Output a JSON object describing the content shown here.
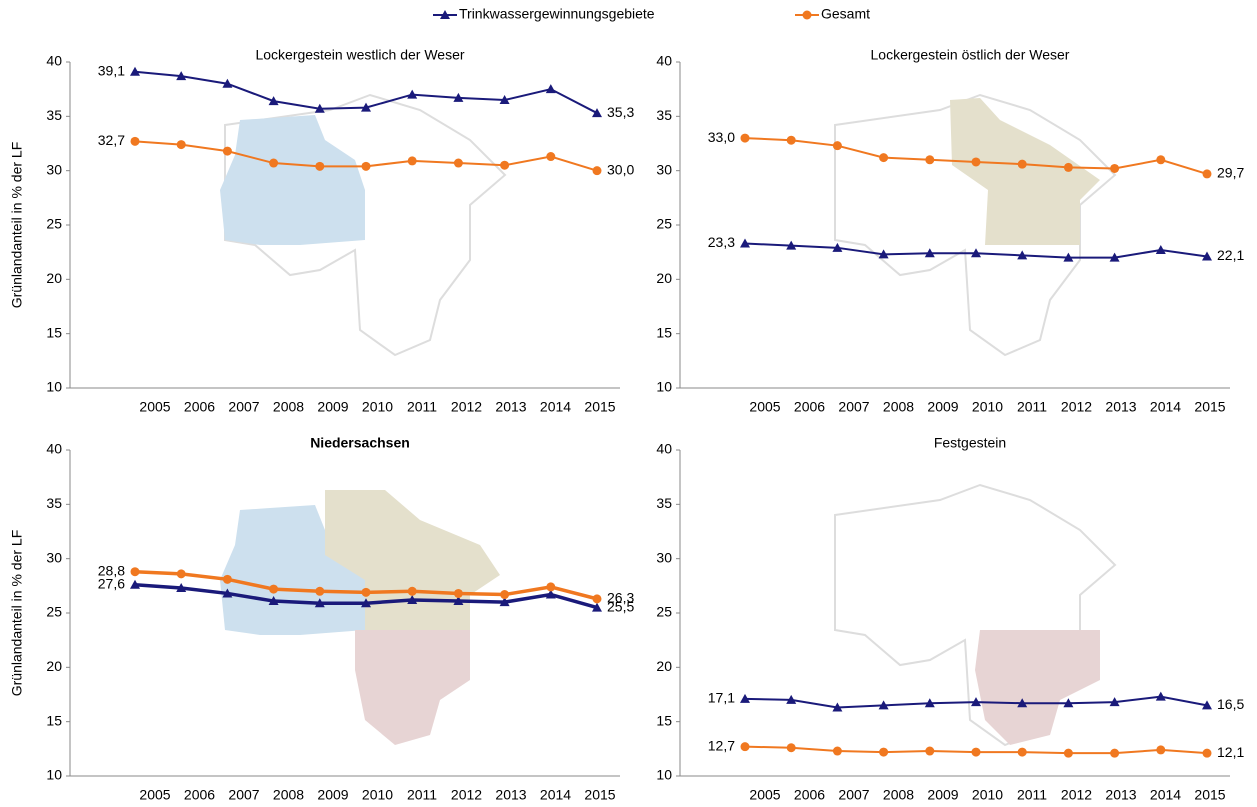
{
  "chart_data": [
    {
      "type": "line",
      "title": "Lockergestein westlich der Weser",
      "title_bold": false,
      "y_label": "Grünlandanteil in % der LF",
      "line_width": 2,
      "categories": [
        "2005",
        "2006",
        "2007",
        "2008",
        "2009",
        "2010",
        "2011",
        "2012",
        "2013",
        "2014",
        "2015"
      ],
      "ylim": [
        10,
        40
      ],
      "yticks": [
        10,
        15,
        20,
        25,
        30,
        35,
        40
      ],
      "series": [
        {
          "name": "Trinkwassergewinnungsgebiete",
          "color": "#1a1a7a",
          "marker": "triangle",
          "values": [
            39.1,
            38.7,
            38.0,
            36.4,
            35.7,
            35.8,
            37.0,
            36.7,
            36.5,
            37.5,
            35.3
          ],
          "value_labels": [
            "39,1",
            null,
            null,
            null,
            null,
            null,
            null,
            null,
            null,
            null,
            "35,3"
          ]
        },
        {
          "name": "Gesamt",
          "color": "#f07820",
          "marker": "circle",
          "values": [
            32.7,
            32.4,
            31.8,
            30.7,
            30.4,
            30.4,
            30.9,
            30.7,
            30.5,
            31.3,
            30.0
          ],
          "value_labels": [
            "32,7",
            null,
            null,
            null,
            null,
            null,
            null,
            null,
            null,
            null,
            "30,0"
          ]
        }
      ]
    },
    {
      "type": "line",
      "title": "Lockergestein östlich der Weser",
      "title_bold": false,
      "line_width": 2,
      "categories": [
        "2005",
        "2006",
        "2007",
        "2008",
        "2009",
        "2010",
        "2011",
        "2012",
        "2013",
        "2014",
        "2015"
      ],
      "ylim": [
        10,
        40
      ],
      "yticks": [
        10,
        15,
        20,
        25,
        30,
        35,
        40
      ],
      "series": [
        {
          "color": "#1a1a7a",
          "marker": "triangle",
          "values": [
            23.3,
            23.1,
            22.9,
            22.3,
            22.4,
            22.4,
            22.2,
            22.0,
            22.0,
            22.7,
            22.1
          ],
          "value_labels": [
            "23,3",
            null,
            null,
            null,
            null,
            null,
            null,
            null,
            null,
            null,
            "22,1"
          ]
        },
        {
          "color": "#f07820",
          "marker": "circle",
          "values": [
            33.0,
            32.8,
            32.3,
            31.2,
            31.0,
            30.8,
            30.6,
            30.3,
            30.2,
            31.0,
            29.7
          ],
          "value_labels": [
            "33,0",
            null,
            null,
            null,
            null,
            null,
            null,
            null,
            null,
            null,
            "29,7"
          ]
        }
      ]
    },
    {
      "type": "line",
      "title": "Niedersachsen",
      "title_bold": true,
      "y_label": "Grünlandanteil in % der LF",
      "line_width": 3.5,
      "categories": [
        "2005",
        "2006",
        "2007",
        "2008",
        "2009",
        "2010",
        "2011",
        "2012",
        "2013",
        "2014",
        "2015"
      ],
      "ylim": [
        10,
        40
      ],
      "yticks": [
        10,
        15,
        20,
        25,
        30,
        35,
        40
      ],
      "series": [
        {
          "color": "#1a1a7a",
          "marker": "triangle",
          "values": [
            27.6,
            27.3,
            26.8,
            26.1,
            25.9,
            25.9,
            26.2,
            26.1,
            26.0,
            26.7,
            25.5
          ],
          "value_labels": [
            "27,6",
            null,
            null,
            null,
            null,
            null,
            null,
            null,
            null,
            null,
            "25,5"
          ]
        },
        {
          "color": "#f07820",
          "marker": "circle",
          "values": [
            28.8,
            28.6,
            28.1,
            27.2,
            27.0,
            26.9,
            27.0,
            26.8,
            26.7,
            27.4,
            26.3
          ],
          "value_labels": [
            "28,8",
            null,
            null,
            null,
            null,
            null,
            null,
            null,
            null,
            null,
            "26,3"
          ]
        }
      ]
    },
    {
      "type": "line",
      "title": "Festgestein",
      "title_bold": false,
      "line_width": 2,
      "categories": [
        "2005",
        "2006",
        "2007",
        "2008",
        "2009",
        "2010",
        "2011",
        "2012",
        "2013",
        "2014",
        "2015"
      ],
      "ylim": [
        10,
        40
      ],
      "yticks": [
        10,
        15,
        20,
        25,
        30,
        35,
        40
      ],
      "series": [
        {
          "color": "#1a1a7a",
          "marker": "triangle",
          "values": [
            17.1,
            17.0,
            16.3,
            16.5,
            16.7,
            16.8,
            16.7,
            16.7,
            16.8,
            17.3,
            16.5
          ],
          "value_labels": [
            "17,1",
            null,
            null,
            null,
            null,
            null,
            null,
            null,
            null,
            null,
            "16,5"
          ]
        },
        {
          "color": "#f07820",
          "marker": "circle",
          "values": [
            12.7,
            12.6,
            12.3,
            12.2,
            12.3,
            12.2,
            12.2,
            12.1,
            12.1,
            12.4,
            12.1
          ],
          "value_labels": [
            "12,7",
            null,
            null,
            null,
            null,
            null,
            null,
            null,
            null,
            null,
            "12,1"
          ]
        }
      ]
    }
  ]
}
